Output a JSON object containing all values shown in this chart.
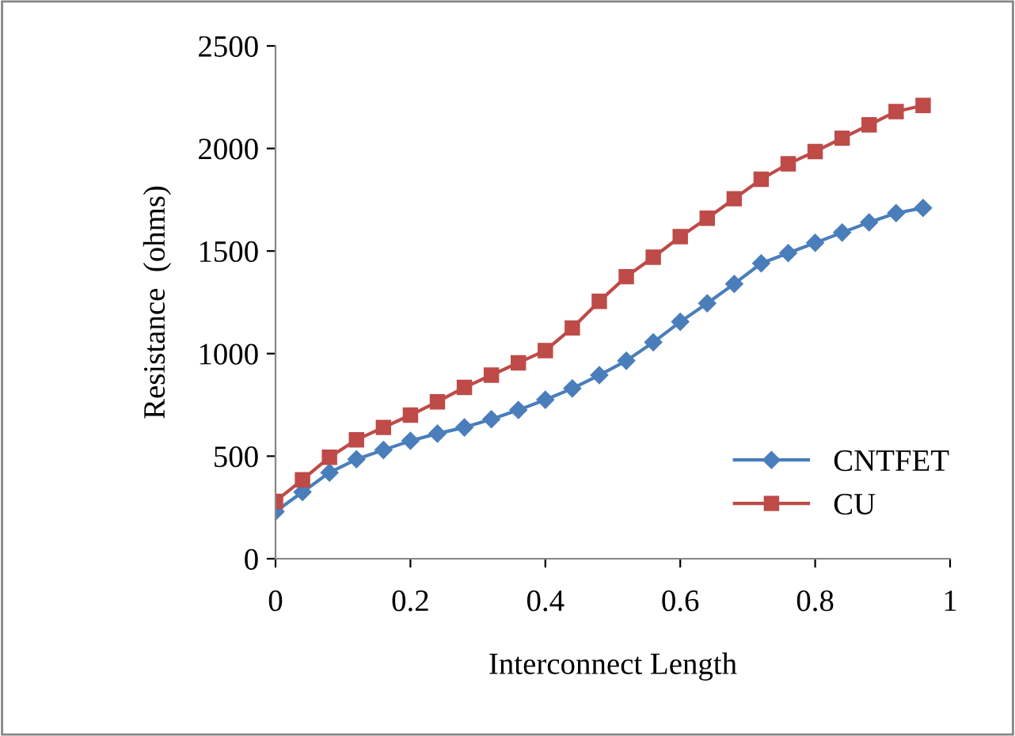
{
  "chart_data": {
    "type": "line",
    "xlabel": "Interconnect Length",
    "ylabel": "Resistance  (ohms)",
    "x": [
      0,
      0.04,
      0.08,
      0.12,
      0.16,
      0.2,
      0.24,
      0.28,
      0.32,
      0.36,
      0.4,
      0.44,
      0.48,
      0.52,
      0.56,
      0.6,
      0.64,
      0.68,
      0.72,
      0.76,
      0.8,
      0.84,
      0.88,
      0.92,
      0.96
    ],
    "series": [
      {
        "name": "CNTFET",
        "color": "#4a7ebb",
        "marker": "diamond",
        "values": [
          230,
          325,
          420,
          485,
          530,
          575,
          610,
          640,
          680,
          725,
          775,
          830,
          895,
          965,
          1055,
          1155,
          1245,
          1340,
          1440,
          1490,
          1540,
          1590,
          1640,
          1685,
          1710
        ]
      },
      {
        "name": "CU",
        "color": "#be4b48",
        "marker": "square",
        "values": [
          280,
          385,
          495,
          580,
          640,
          700,
          765,
          835,
          895,
          955,
          1015,
          1125,
          1255,
          1375,
          1470,
          1570,
          1660,
          1755,
          1850,
          1925,
          1985,
          2050,
          2115,
          2180,
          2210
        ]
      }
    ],
    "xlim": [
      0,
      1
    ],
    "xticks": [
      0,
      0.2,
      0.4,
      0.6,
      0.8,
      1
    ],
    "ylim": [
      0,
      2500
    ],
    "yticks": [
      0,
      500,
      1000,
      1500,
      2000,
      2500
    ],
    "grid": false,
    "legend": "bottom right",
    "line_style": "solid"
  }
}
